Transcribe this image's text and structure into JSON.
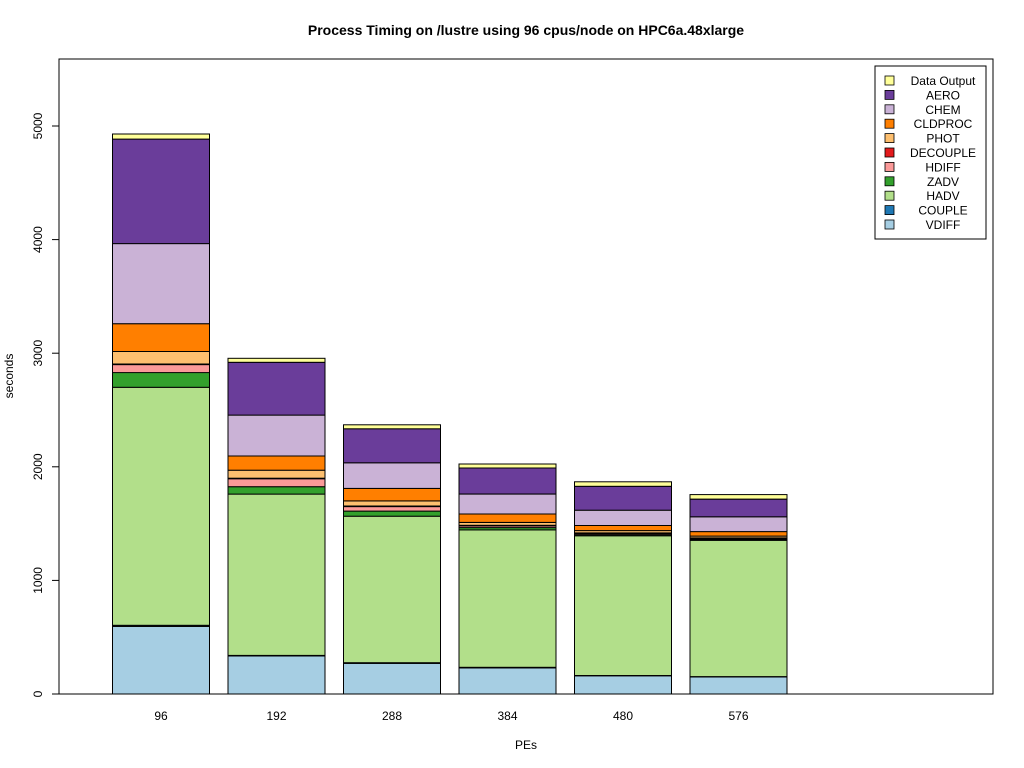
{
  "chart_data": {
    "type": "bar",
    "stacked": true,
    "title": "Process Timing on /lustre using 96 cpus/node on HPC6a.48xlarge",
    "xlabel": "PEs",
    "ylabel": "seconds",
    "categories": [
      "96",
      "192",
      "288",
      "384",
      "480",
      "576"
    ],
    "ylim": [
      0,
      5600
    ],
    "yticks": [
      0,
      1000,
      2000,
      3000,
      4000,
      5000
    ],
    "grid": false,
    "legend_position": "top-right",
    "series": [
      {
        "name": "VDIFF",
        "color": "#a6cee3",
        "values": [
          595,
          335,
          270,
          230,
          160,
          150
        ]
      },
      {
        "name": "COUPLE",
        "color": "#1f78b4",
        "values": [
          10,
          5,
          5,
          5,
          3,
          3
        ]
      },
      {
        "name": "HADV",
        "color": "#b2df8a",
        "values": [
          2095,
          1420,
          1290,
          1210,
          1230,
          1200
        ]
      },
      {
        "name": "ZADV",
        "color": "#33a02c",
        "values": [
          130,
          65,
          45,
          20,
          10,
          8
        ]
      },
      {
        "name": "HDIFF",
        "color": "#fb9a99",
        "values": [
          70,
          70,
          40,
          15,
          10,
          8
        ]
      },
      {
        "name": "DECOUPLE",
        "color": "#e31a1c",
        "values": [
          5,
          5,
          5,
          5,
          5,
          5
        ]
      },
      {
        "name": "PHOT",
        "color": "#fdbf6f",
        "values": [
          110,
          70,
          45,
          25,
          20,
          16
        ]
      },
      {
        "name": "CLDPROC",
        "color": "#ff7f00",
        "values": [
          245,
          125,
          110,
          75,
          45,
          40
        ]
      },
      {
        "name": "CHEM",
        "color": "#cab2d6",
        "values": [
          705,
          360,
          225,
          175,
          135,
          130
        ]
      },
      {
        "name": "AERO",
        "color": "#6a3d9a",
        "values": [
          920,
          465,
          300,
          230,
          210,
          155
        ]
      },
      {
        "name": "Data Output",
        "color": "#ffff99",
        "values": [
          45,
          35,
          35,
          35,
          40,
          40
        ]
      }
    ]
  }
}
